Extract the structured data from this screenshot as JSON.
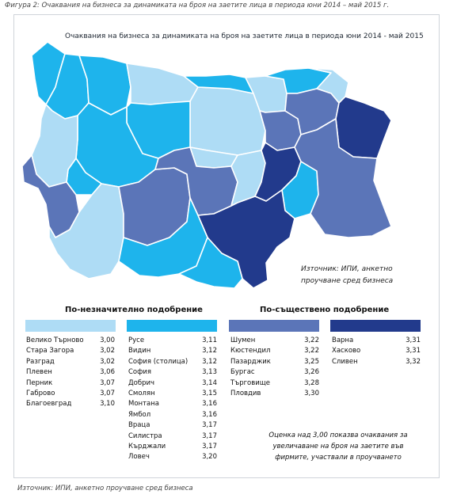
{
  "caption": "Фигура 2: Очаквания на бизнеса за динамиката на броя на заетите лица в периода юни 2014 – май 2015 г.",
  "map": {
    "title": "Очаквания на бизнеса за динамиката на броя на заетите лица в периода юни 2014 - май 2015",
    "source_note_line1": "Източник: ИПИ, анкетно",
    "source_note_line2": "проучване сред бизнеса"
  },
  "colors": {
    "group1": "#aedcf5",
    "group2": "#1eb4ec",
    "group3": "#5b75b8",
    "group4": "#223a8c",
    "border": "#ffffff"
  },
  "legend": {
    "title_left": "По-незначително подобрение",
    "title_right": "По-съществено подобрение",
    "groups": [
      {
        "rows": [
          {
            "name": "Велико Търново",
            "value": "3,00"
          },
          {
            "name": "Стара Загора",
            "value": "3,02"
          },
          {
            "name": "Разград",
            "value": "3,02"
          },
          {
            "name": "Плевен",
            "value": "3,06"
          },
          {
            "name": "Перник",
            "value": "3,07"
          },
          {
            "name": "Габрово",
            "value": "3,07"
          },
          {
            "name": "Благоевград",
            "value": "3,10"
          }
        ]
      },
      {
        "rows": [
          {
            "name": "Русе",
            "value": "3,11"
          },
          {
            "name": "Видин",
            "value": "3,12"
          },
          {
            "name": "София (столица)",
            "value": "3,12"
          },
          {
            "name": "София",
            "value": "3,13"
          },
          {
            "name": "Добрич",
            "value": "3,14"
          },
          {
            "name": "Смолян",
            "value": "3,15"
          },
          {
            "name": "Монтана",
            "value": "3,16"
          },
          {
            "name": "Ямбол",
            "value": "3,16"
          },
          {
            "name": "Враца",
            "value": "3,17"
          },
          {
            "name": "Силистра",
            "value": "3,17"
          },
          {
            "name": "Кърджали",
            "value": "3,17"
          },
          {
            "name": "Ловеч",
            "value": "3,20"
          }
        ]
      },
      {
        "rows": [
          {
            "name": "Шумен",
            "value": "3,22"
          },
          {
            "name": "Кюстендил",
            "value": "3,22"
          },
          {
            "name": "Пазарджик",
            "value": "3,25"
          },
          {
            "name": "Бургас",
            "value": "3,26"
          },
          {
            "name": "Търговище",
            "value": "3,28"
          },
          {
            "name": "Пловдив",
            "value": "3,30"
          }
        ]
      },
      {
        "rows": [
          {
            "name": "Варна",
            "value": "3,31"
          },
          {
            "name": "Хасково",
            "value": "3,31"
          },
          {
            "name": "Сливен",
            "value": "3,32"
          }
        ]
      }
    ]
  },
  "note": "Оценка над 3,00 показва очаквания за увеличаване на броя на заетите във фирмите, участвали в проучването",
  "footer": "Източник: ИПИ, анкетно проучване сред бизнеса"
}
